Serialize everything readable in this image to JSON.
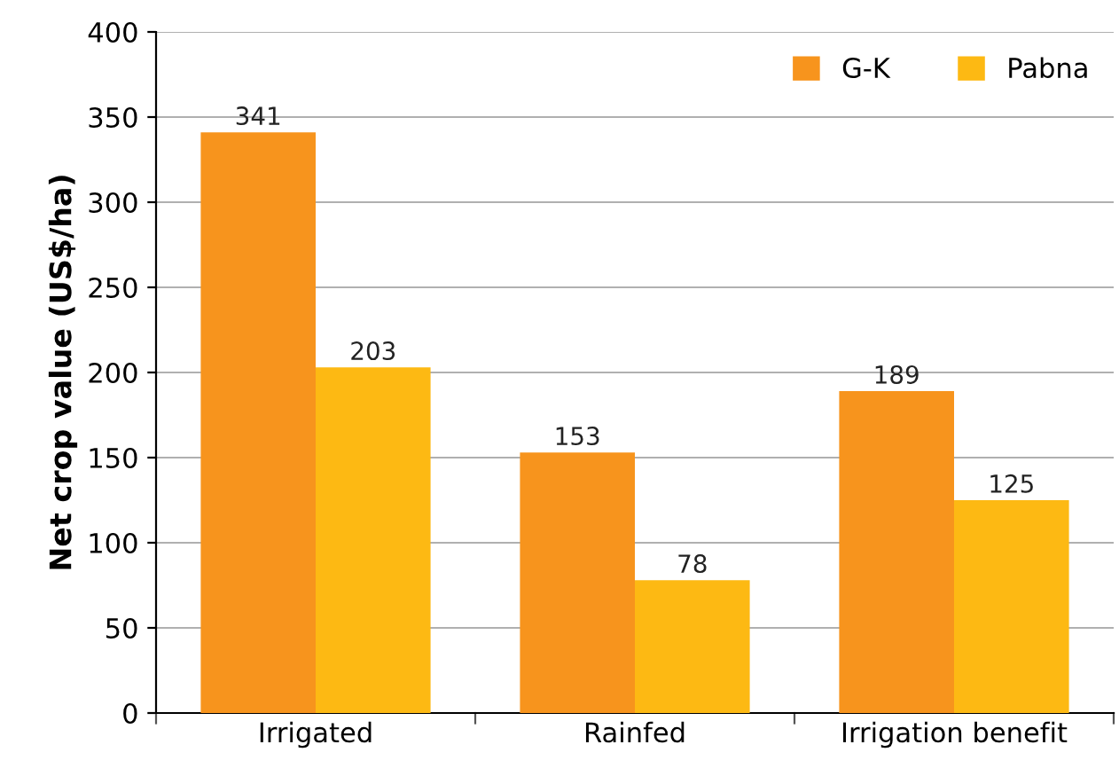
{
  "chart_data": {
    "type": "bar",
    "ylabel": "Net crop value (US$/ha)",
    "categories": [
      "Irrigated",
      "Rainfed",
      "Irrigation benefit"
    ],
    "series": [
      {
        "name": "G-K",
        "color": "#f7941d",
        "values": [
          341,
          153,
          189
        ]
      },
      {
        "name": "Pabna",
        "color": "#fdb913",
        "values": [
          203,
          78,
          125
        ]
      }
    ],
    "ylim": [
      0,
      400
    ],
    "yticks": [
      0,
      50,
      100,
      150,
      200,
      250,
      300,
      350,
      400
    ],
    "grid": "y",
    "legend": "top right",
    "data_labels": true
  }
}
